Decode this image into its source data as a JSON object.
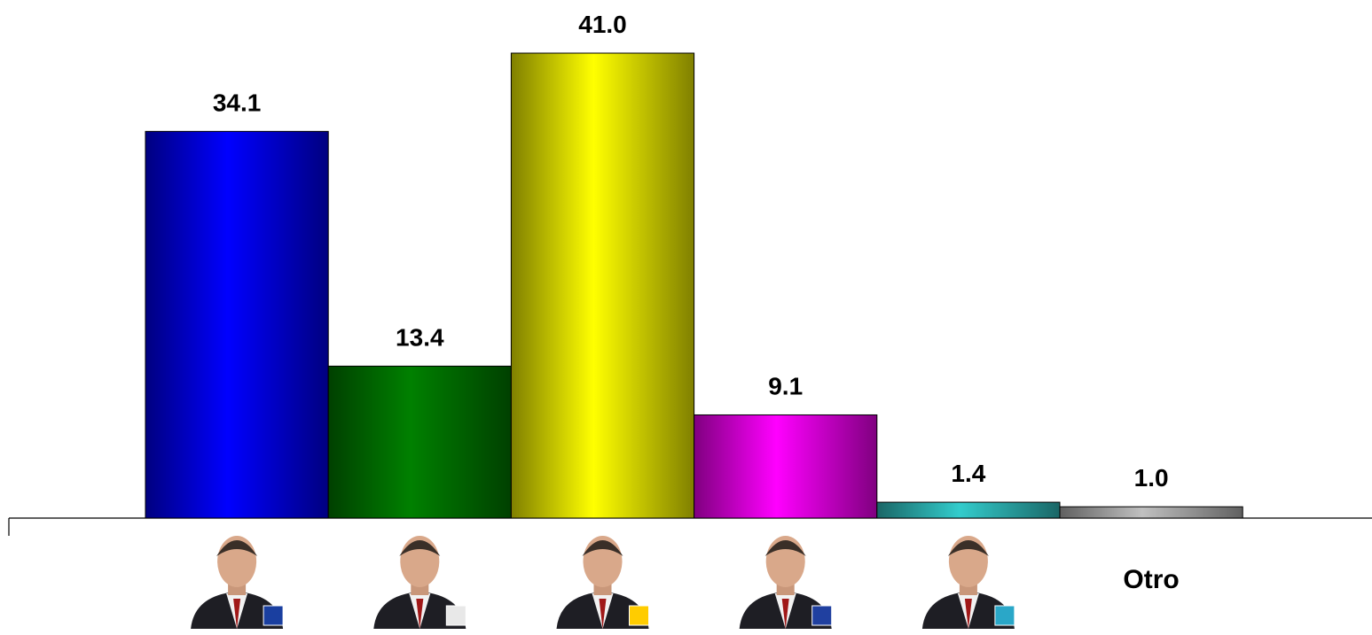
{
  "chart_data": {
    "type": "bar",
    "categories": [
      null,
      null,
      null,
      null,
      null,
      "Otro"
    ],
    "values": [
      34.1,
      13.4,
      41.0,
      9.1,
      1.4,
      1.0
    ],
    "value_labels": [
      "34.1",
      "13.4",
      "41.0",
      "9.1",
      "1.4",
      "1.0"
    ],
    "colors": [
      "#0000ff",
      "#008000",
      "#ffff00",
      "#ff00ff",
      "#33cccc",
      "#c0c0c0"
    ]
  }
}
